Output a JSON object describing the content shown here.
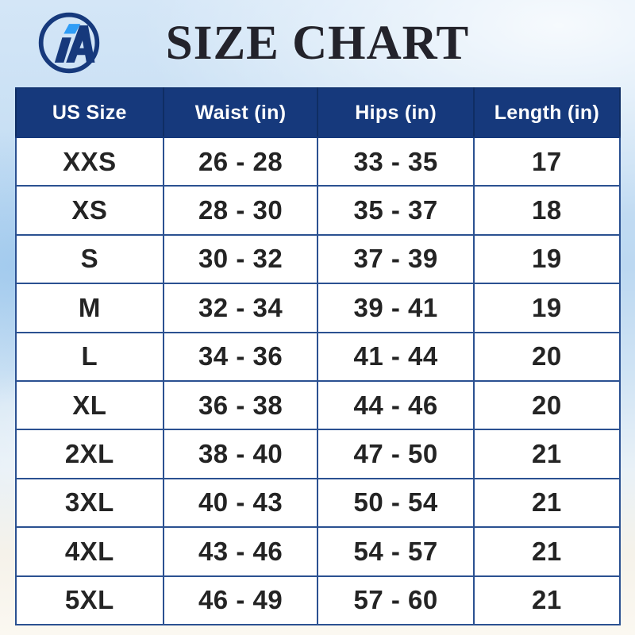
{
  "header": {
    "title": "SIZE CHART",
    "logo_icon": "ia-monogram-circle-icon"
  },
  "chart_data": {
    "type": "table",
    "title": "SIZE CHART",
    "columns": [
      "US Size",
      "Waist (in)",
      "Hips (in)",
      "Length (in)"
    ],
    "rows": [
      [
        "XXS",
        "26 - 28",
        "33 - 35",
        "17"
      ],
      [
        "XS",
        "28 - 30",
        "35 - 37",
        "18"
      ],
      [
        "S",
        "30 - 32",
        "37 - 39",
        "19"
      ],
      [
        "M",
        "32 - 34",
        "39 - 41",
        "19"
      ],
      [
        "L",
        "34 - 36",
        "41 - 44",
        "20"
      ],
      [
        "XL",
        "36 - 38",
        "44 - 46",
        "20"
      ],
      [
        "2XL",
        "38 - 40",
        "47 - 50",
        "21"
      ],
      [
        "3XL",
        "40 - 43",
        "50 - 54",
        "21"
      ],
      [
        "4XL",
        "43 - 46",
        "54 - 57",
        "21"
      ],
      [
        "5XL",
        "46 - 49",
        "57 - 60",
        "21"
      ]
    ],
    "layout": {
      "header_row": true,
      "grid": true,
      "units": "inches"
    }
  },
  "colors": {
    "header_bg": "#16397c",
    "header_text": "#ffffff",
    "header_divider": "#0f2d63",
    "grid_border": "#2b5191",
    "outer_border": "#143672",
    "title_text": "#23232b",
    "cell_text": "#242424",
    "logo_navy": "#16397c",
    "logo_accent": "#2f9df6",
    "bg_sky_top": "#d4e6f7",
    "bg_sky_mid": "#bcd8f1",
    "bg_sand": "#fbf8f1"
  }
}
